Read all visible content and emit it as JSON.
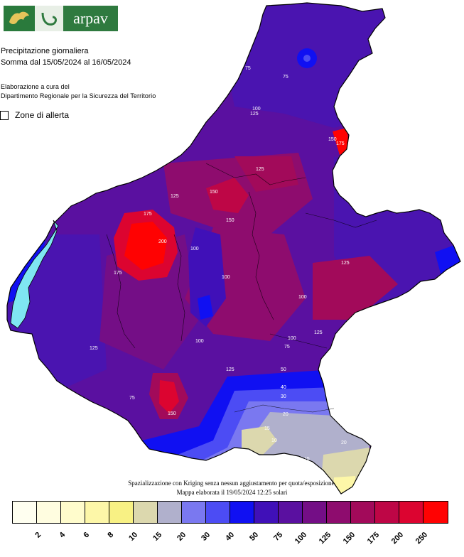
{
  "logo": {
    "name": "arpav"
  },
  "header": {
    "title": "Precipitazione giornaliera",
    "period": "Somma dal 15/05/2024 al 16/05/2024",
    "credit_line1": "Elaborazione a cura del",
    "credit_line2": "Dipartimento Regionale per la Sicurezza del Territorio"
  },
  "legend_item": {
    "label": "Zone di allerta"
  },
  "footer": {
    "method": "Spazializzazione con Kriging senza nessun aggiustamento per quota/esposizione.",
    "date": "Mappa elaborata il 19/05/2024 12:25 solari"
  },
  "scale": {
    "colors": [
      "#fffff0",
      "#fffde0",
      "#fffccc",
      "#fdf7a8",
      "#f8f184",
      "#dcd8ae",
      "#b0b0cc",
      "#7a78f0",
      "#4c4cf4",
      "#1010f2",
      "#4010b8",
      "#5a10a0",
      "#740e86",
      "#8e0c6e",
      "#a20a5a",
      "#be0646",
      "#dc0430",
      "#ff0202"
    ],
    "ticks": [
      "2",
      "4",
      "6",
      "8",
      "10",
      "15",
      "20",
      "30",
      "40",
      "50",
      "75",
      "100",
      "125",
      "150",
      "175",
      "200",
      "250"
    ]
  },
  "map_labels": [
    {
      "t": "75"
    },
    {
      "t": "75"
    },
    {
      "t": "100"
    },
    {
      "t": "125"
    },
    {
      "t": "125"
    },
    {
      "t": "150"
    },
    {
      "t": "150"
    },
    {
      "t": "175"
    },
    {
      "t": "200"
    },
    {
      "t": "175"
    },
    {
      "t": "125"
    },
    {
      "t": "100"
    },
    {
      "t": "100"
    },
    {
      "t": "100"
    },
    {
      "t": "125"
    },
    {
      "t": "125"
    },
    {
      "t": "100"
    },
    {
      "t": "75"
    },
    {
      "t": "75"
    },
    {
      "t": "50"
    },
    {
      "t": "40"
    },
    {
      "t": "30"
    },
    {
      "t": "20"
    },
    {
      "t": "15"
    },
    {
      "t": "10"
    },
    {
      "t": "20"
    },
    {
      "t": "15"
    },
    {
      "t": "150"
    },
    {
      "t": "125"
    },
    {
      "t": "100"
    },
    {
      "t": "175"
    },
    {
      "t": "150"
    },
    {
      "t": "125"
    }
  ]
}
